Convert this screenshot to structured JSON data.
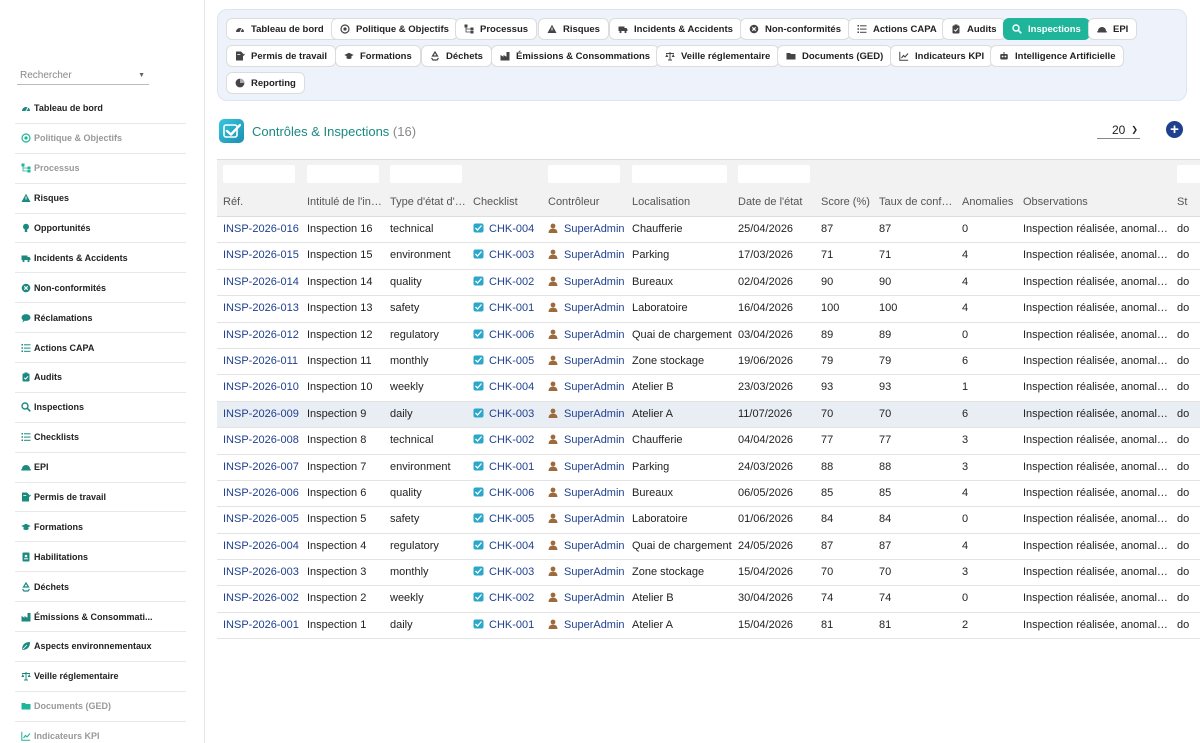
{
  "sidebar": {
    "search_placeholder": "Rechercher",
    "items": [
      {
        "label": "Tableau de bord",
        "icon": "dashboard-icon",
        "disabled": false
      },
      {
        "label": "Politique & Objectifs",
        "icon": "target-icon",
        "disabled": true
      },
      {
        "label": "Processus",
        "icon": "sitemap-icon",
        "disabled": true
      },
      {
        "label": "Risques",
        "icon": "warning-icon",
        "disabled": false
      },
      {
        "label": "Opportunités",
        "icon": "lightbulb-icon",
        "disabled": false
      },
      {
        "label": "Incidents & Accidents",
        "icon": "ambulance-icon",
        "disabled": false
      },
      {
        "label": "Non-conformités",
        "icon": "times-circle-icon",
        "disabled": false
      },
      {
        "label": "Réclamations",
        "icon": "comment-icon",
        "disabled": false
      },
      {
        "label": "Actions CAPA",
        "icon": "list-icon",
        "disabled": false
      },
      {
        "label": "Audits",
        "icon": "clipboard-icon",
        "disabled": false
      },
      {
        "label": "Inspections",
        "icon": "search-icon",
        "disabled": false
      },
      {
        "label": "Checklists",
        "icon": "list-icon",
        "disabled": false
      },
      {
        "label": "EPI",
        "icon": "helmet-icon",
        "disabled": false
      },
      {
        "label": "Permis de travail",
        "icon": "file-signature-icon",
        "disabled": false
      },
      {
        "label": "Formations",
        "icon": "graduation-icon",
        "disabled": false
      },
      {
        "label": "Habilitations",
        "icon": "badge-icon",
        "disabled": false
      },
      {
        "label": "Déchets",
        "icon": "recycle-icon",
        "disabled": false
      },
      {
        "label": "Émissions & Consommati...",
        "icon": "industry-icon",
        "disabled": false
      },
      {
        "label": "Aspects environnementaux",
        "icon": "leaf-icon",
        "disabled": false
      },
      {
        "label": "Veille réglementaire",
        "icon": "balance-icon",
        "disabled": false
      },
      {
        "label": "Documents (GED)",
        "icon": "folder-icon",
        "disabled": true
      },
      {
        "label": "Indicateurs KPI",
        "icon": "chart-icon",
        "disabled": true
      }
    ]
  },
  "modules": [
    {
      "label": "Tableau de bord",
      "icon": "dashboard-icon",
      "active": false
    },
    {
      "label": "Politique & Objectifs",
      "icon": "target-icon",
      "active": false
    },
    {
      "label": "Processus",
      "icon": "sitemap-icon",
      "active": false
    },
    {
      "label": "Risques",
      "icon": "warning-icon",
      "active": false
    },
    {
      "label": "Incidents & Accidents",
      "icon": "ambulance-icon",
      "active": false
    },
    {
      "label": "Non-conformités",
      "icon": "times-circle-icon",
      "active": false
    },
    {
      "label": "Actions CAPA",
      "icon": "list-icon",
      "active": false
    },
    {
      "label": "Audits",
      "icon": "clipboard-icon",
      "active": false
    },
    {
      "label": "Inspections",
      "icon": "search-icon",
      "active": true
    },
    {
      "label": "EPI",
      "icon": "helmet-icon",
      "active": false
    },
    {
      "label": "Permis de travail",
      "icon": "file-signature-icon",
      "active": false
    },
    {
      "label": "Formations",
      "icon": "graduation-icon",
      "active": false
    },
    {
      "label": "Déchets",
      "icon": "recycle-icon",
      "active": false
    },
    {
      "label": "Émissions & Consommations",
      "icon": "industry-icon",
      "active": false
    },
    {
      "label": "Veille réglementaire",
      "icon": "balance-icon",
      "active": false
    },
    {
      "label": "Documents (GED)",
      "icon": "folder-icon",
      "active": false
    },
    {
      "label": "Indicateurs KPI",
      "icon": "chart-icon",
      "active": false
    },
    {
      "label": "Intelligence Artificielle",
      "icon": "robot-icon",
      "active": false
    },
    {
      "label": "Reporting",
      "icon": "reporting-icon",
      "active": false
    }
  ],
  "header": {
    "title": "Contrôles & Inspections",
    "count": "(16)",
    "per_page": "20"
  },
  "colors": {
    "accent": "#1eb59a",
    "link": "#1f3f8f",
    "title": "#1a8a80",
    "highlight_row": "#e9eef5"
  },
  "table": {
    "columns": [
      "Réf.",
      "Intitulé de l'inspection",
      "Type d'état d'inspection",
      "Checklist",
      "Contrôleur",
      "Localisation",
      "Date de l'état",
      "Score (%)",
      "Taux de conformité",
      "Anomalies",
      "Observations",
      "St"
    ],
    "highlight_index": 7,
    "rows": [
      {
        "ref": "INSP-2026-016",
        "title": "Inspection 16",
        "type": "technical",
        "checklist": "CHK-004",
        "controller": "SuperAdmin",
        "location": "Chaufferie",
        "date": "25/04/2026",
        "score": "87",
        "rate": "87",
        "anomalies": "0",
        "observations": "Inspection réalisée, anomalies relevées",
        "status": "do"
      },
      {
        "ref": "INSP-2026-015",
        "title": "Inspection 15",
        "type": "environment",
        "checklist": "CHK-003",
        "controller": "SuperAdmin",
        "location": "Parking",
        "date": "17/03/2026",
        "score": "71",
        "rate": "71",
        "anomalies": "4",
        "observations": "Inspection réalisée, anomalies relevées",
        "status": "do"
      },
      {
        "ref": "INSP-2026-014",
        "title": "Inspection 14",
        "type": "quality",
        "checklist": "CHK-002",
        "controller": "SuperAdmin",
        "location": "Bureaux",
        "date": "02/04/2026",
        "score": "90",
        "rate": "90",
        "anomalies": "4",
        "observations": "Inspection réalisée, anomalies relevées",
        "status": "do"
      },
      {
        "ref": "INSP-2026-013",
        "title": "Inspection 13",
        "type": "safety",
        "checklist": "CHK-001",
        "controller": "SuperAdmin",
        "location": "Laboratoire",
        "date": "16/04/2026",
        "score": "100",
        "rate": "100",
        "anomalies": "4",
        "observations": "Inspection réalisée, anomalies relevées",
        "status": "do"
      },
      {
        "ref": "INSP-2026-012",
        "title": "Inspection 12",
        "type": "regulatory",
        "checklist": "CHK-006",
        "controller": "SuperAdmin",
        "location": "Quai de chargement",
        "date": "03/04/2026",
        "score": "89",
        "rate": "89",
        "anomalies": "0",
        "observations": "Inspection réalisée, anomalies relevées",
        "status": "do"
      },
      {
        "ref": "INSP-2026-011",
        "title": "Inspection 11",
        "type": "monthly",
        "checklist": "CHK-005",
        "controller": "SuperAdmin",
        "location": "Zone stockage",
        "date": "19/06/2026",
        "score": "79",
        "rate": "79",
        "anomalies": "6",
        "observations": "Inspection réalisée, anomalies relevées",
        "status": "do"
      },
      {
        "ref": "INSP-2026-010",
        "title": "Inspection 10",
        "type": "weekly",
        "checklist": "CHK-004",
        "controller": "SuperAdmin",
        "location": "Atelier B",
        "date": "23/03/2026",
        "score": "93",
        "rate": "93",
        "anomalies": "1",
        "observations": "Inspection réalisée, anomalies relevées",
        "status": "do"
      },
      {
        "ref": "INSP-2026-009",
        "title": "Inspection 9",
        "type": "daily",
        "checklist": "CHK-003",
        "controller": "SuperAdmin",
        "location": "Atelier A",
        "date": "11/07/2026",
        "score": "70",
        "rate": "70",
        "anomalies": "6",
        "observations": "Inspection réalisée, anomalies relevées",
        "status": "do"
      },
      {
        "ref": "INSP-2026-008",
        "title": "Inspection 8",
        "type": "technical",
        "checklist": "CHK-002",
        "controller": "SuperAdmin",
        "location": "Chaufferie",
        "date": "04/04/2026",
        "score": "77",
        "rate": "77",
        "anomalies": "3",
        "observations": "Inspection réalisée, anomalies relevées",
        "status": "do"
      },
      {
        "ref": "INSP-2026-007",
        "title": "Inspection 7",
        "type": "environment",
        "checklist": "CHK-001",
        "controller": "SuperAdmin",
        "location": "Parking",
        "date": "24/03/2026",
        "score": "88",
        "rate": "88",
        "anomalies": "3",
        "observations": "Inspection réalisée, anomalies relevées",
        "status": "do"
      },
      {
        "ref": "INSP-2026-006",
        "title": "Inspection 6",
        "type": "quality",
        "checklist": "CHK-006",
        "controller": "SuperAdmin",
        "location": "Bureaux",
        "date": "06/05/2026",
        "score": "85",
        "rate": "85",
        "anomalies": "4",
        "observations": "Inspection réalisée, anomalies relevées",
        "status": "do"
      },
      {
        "ref": "INSP-2026-005",
        "title": "Inspection 5",
        "type": "safety",
        "checklist": "CHK-005",
        "controller": "SuperAdmin",
        "location": "Laboratoire",
        "date": "01/06/2026",
        "score": "84",
        "rate": "84",
        "anomalies": "0",
        "observations": "Inspection réalisée, anomalies relevées",
        "status": "do"
      },
      {
        "ref": "INSP-2026-004",
        "title": "Inspection 4",
        "type": "regulatory",
        "checklist": "CHK-004",
        "controller": "SuperAdmin",
        "location": "Quai de chargement",
        "date": "24/05/2026",
        "score": "87",
        "rate": "87",
        "anomalies": "4",
        "observations": "Inspection réalisée, anomalies relevées",
        "status": "do"
      },
      {
        "ref": "INSP-2026-003",
        "title": "Inspection 3",
        "type": "monthly",
        "checklist": "CHK-003",
        "controller": "SuperAdmin",
        "location": "Zone stockage",
        "date": "15/04/2026",
        "score": "70",
        "rate": "70",
        "anomalies": "3",
        "observations": "Inspection réalisée, anomalies relevées",
        "status": "do"
      },
      {
        "ref": "INSP-2026-002",
        "title": "Inspection 2",
        "type": "weekly",
        "checklist": "CHK-002",
        "controller": "SuperAdmin",
        "location": "Atelier B",
        "date": "30/04/2026",
        "score": "74",
        "rate": "74",
        "anomalies": "0",
        "observations": "Inspection réalisée, anomalies relevées",
        "status": "do"
      },
      {
        "ref": "INSP-2026-001",
        "title": "Inspection 1",
        "type": "daily",
        "checklist": "CHK-001",
        "controller": "SuperAdmin",
        "location": "Atelier A",
        "date": "15/04/2026",
        "score": "81",
        "rate": "81",
        "anomalies": "2",
        "observations": "Inspection réalisée, anomalies relevées",
        "status": "do"
      }
    ]
  }
}
